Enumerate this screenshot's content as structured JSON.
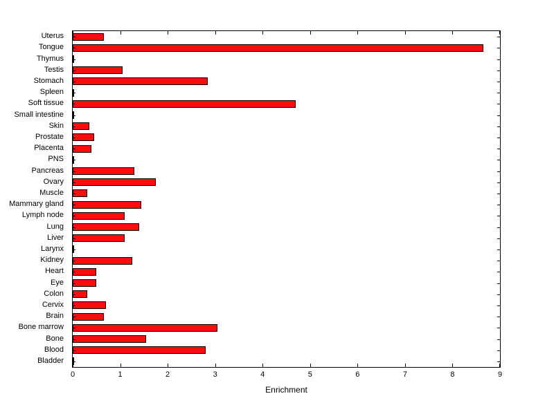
{
  "figure": {
    "background": "#ffffff"
  },
  "chart_data": {
    "type": "bar",
    "orientation": "horizontal",
    "title": "",
    "xlabel": "Enrichment",
    "ylabel": "",
    "xlim": [
      0,
      9
    ],
    "x_ticks": [
      0,
      1,
      2,
      3,
      4,
      5,
      6,
      7,
      8,
      9
    ],
    "grid": false,
    "legend": "none",
    "bar_color": "#fb0d0d",
    "bar_edge_color": "#000000",
    "categories": [
      "Uterus",
      "Tongue",
      "Thymus",
      "Testis",
      "Stomach",
      "Spleen",
      "Soft tissue",
      "Small intestine",
      "Skin",
      "Prostate",
      "Placenta",
      "PNS",
      "Pancreas",
      "Ovary",
      "Muscle",
      "Mammary gland",
      "Lymph node",
      "Lung",
      "Liver",
      "Larynx",
      "Kidney",
      "Heart",
      "Eye",
      "Colon",
      "Cervix",
      "Brain",
      "Bone marrow",
      "Bone",
      "Blood",
      "Bladder"
    ],
    "values": [
      0.65,
      8.65,
      0.02,
      1.05,
      2.85,
      0.02,
      4.7,
      0.02,
      0.35,
      0.45,
      0.4,
      0.02,
      1.3,
      1.75,
      0.3,
      1.45,
      1.1,
      1.4,
      1.1,
      0.02,
      1.25,
      0.5,
      0.5,
      0.3,
      0.7,
      0.65,
      3.05,
      1.55,
      2.8,
      0.02
    ]
  }
}
